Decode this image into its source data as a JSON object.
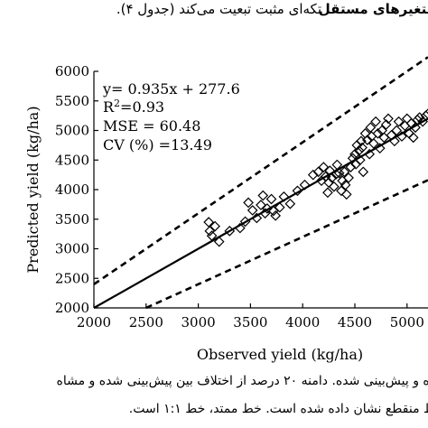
{
  "header": {
    "persian_right": "متغیرهای مستقل",
    "persian_middle": "تکه‌ای مثبت تبعیت می‌کند (جدول ۴)."
  },
  "caption": {
    "line1": "ده و پیش‌بینی شده. دامنه ۲۰ درصد از اختلاف بین پیش‌بینی شده و مشاه",
    "line2": "ط منقطع نشان داده شده است. خط ممتد، خط ۱:۱ است."
  },
  "chart_data": {
    "type": "scatter",
    "xlabel": "Observed yield (kg/ha)",
    "ylabel": "Predicted yield (kg/ha)",
    "xlim": [
      2000,
      5200
    ],
    "ylim": [
      2000,
      6000
    ],
    "x_ticks": [
      2000,
      2500,
      3000,
      3500,
      4000,
      4500,
      5000
    ],
    "y_ticks": [
      2000,
      2500,
      3000,
      3500,
      4000,
      4500,
      5000,
      5500,
      6000
    ],
    "grid": false,
    "marker": "diamond-open",
    "annotation": {
      "equation": "y= 0.935x + 277.6",
      "r2": "R²=0.93",
      "mse": "MSE = 60.48",
      "cv": "CV (%) =13.49"
    },
    "lines": [
      {
        "style": "solid",
        "points": [
          [
            2000,
            2000
          ],
          [
            5200,
            5200
          ]
        ]
      },
      {
        "style": "dashed",
        "points": [
          [
            2000,
            2400
          ],
          [
            5200,
            6240
          ]
        ]
      },
      {
        "style": "dashed",
        "points": [
          [
            2500,
            2000
          ],
          [
            5200,
            4160
          ]
        ]
      }
    ],
    "points": [
      [
        3100,
        3450
      ],
      [
        3110,
        3300
      ],
      [
        3130,
        3220
      ],
      [
        3160,
        3380
      ],
      [
        3200,
        3120
      ],
      [
        3300,
        3300
      ],
      [
        3400,
        3350
      ],
      [
        3450,
        3460
      ],
      [
        3480,
        3780
      ],
      [
        3520,
        3650
      ],
      [
        3560,
        3520
      ],
      [
        3600,
        3740
      ],
      [
        3640,
        3600
      ],
      [
        3660,
        3680
      ],
      [
        3700,
        3840
      ],
      [
        3720,
        3640
      ],
      [
        3740,
        3560
      ],
      [
        3780,
        3700
      ],
      [
        3620,
        3900
      ],
      [
        3820,
        3880
      ],
      [
        3880,
        3760
      ],
      [
        3950,
        3980
      ],
      [
        4020,
        4080
      ],
      [
        4100,
        4250
      ],
      [
        4150,
        4300
      ],
      [
        4180,
        4150
      ],
      [
        4200,
        4380
      ],
      [
        4220,
        4220
      ],
      [
        4240,
        3950
      ],
      [
        4250,
        4120
      ],
      [
        4260,
        4320
      ],
      [
        4280,
        4200
      ],
      [
        4300,
        4050
      ],
      [
        4320,
        4260
      ],
      [
        4330,
        4420
      ],
      [
        4350,
        4280
      ],
      [
        4370,
        3980
      ],
      [
        4380,
        4150
      ],
      [
        4400,
        4300
      ],
      [
        4410,
        4080
      ],
      [
        4420,
        3920
      ],
      [
        4440,
        4200
      ],
      [
        4460,
        4380
      ],
      [
        4480,
        4530
      ],
      [
        4500,
        4600
      ],
      [
        4510,
        4430
      ],
      [
        4520,
        4750
      ],
      [
        4540,
        4660
      ],
      [
        4550,
        4500
      ],
      [
        4560,
        4820
      ],
      [
        4570,
        4710
      ],
      [
        4580,
        4300
      ],
      [
        4600,
        4950
      ],
      [
        4620,
        4840
      ],
      [
        4640,
        4600
      ],
      [
        4650,
        5050
      ],
      [
        4660,
        4900
      ],
      [
        4680,
        4780
      ],
      [
        4700,
        5150
      ],
      [
        4720,
        4950
      ],
      [
        4740,
        4700
      ],
      [
        4760,
        5000
      ],
      [
        4780,
        4880
      ],
      [
        4800,
        5100
      ],
      [
        4820,
        5200
      ],
      [
        4850,
        4920
      ],
      [
        4880,
        4820
      ],
      [
        4900,
        5000
      ],
      [
        4920,
        5150
      ],
      [
        4950,
        4900
      ],
      [
        4980,
        5080
      ],
      [
        5000,
        5200
      ],
      [
        5020,
        4950
      ],
      [
        5040,
        5120
      ],
      [
        5060,
        4880
      ],
      [
        5080,
        5050
      ],
      [
        5100,
        5180
      ],
      [
        5120,
        5220
      ],
      [
        5150,
        5150
      ],
      [
        5180,
        5250
      ],
      [
        5200,
        5280
      ]
    ]
  }
}
